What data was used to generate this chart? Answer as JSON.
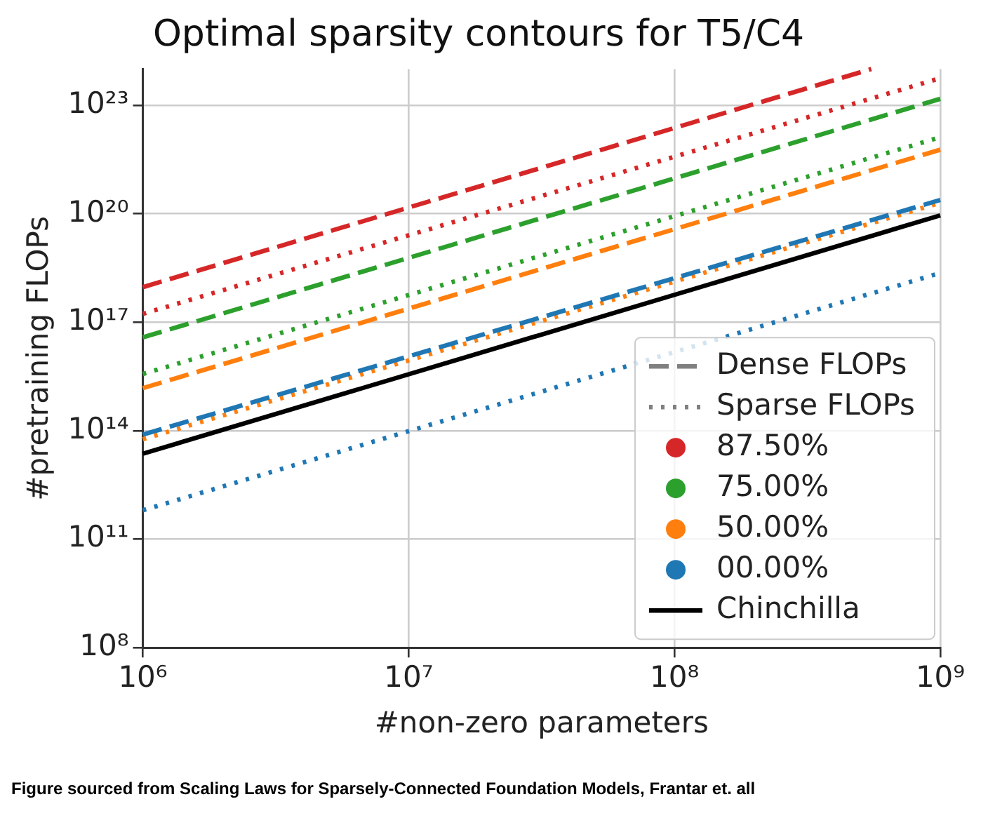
{
  "chart_data": {
    "type": "line",
    "title": "Optimal sparsity contours for T5/C4",
    "xlabel": "#non-zero parameters",
    "ylabel": "#pretraining FLOPs",
    "log": "xy",
    "grid": true,
    "legend": "bottom right",
    "xlim": [
      1000000,
      1000000000
    ],
    "ylim": [
      100000000,
      1e+24
    ],
    "xticks": [
      {
        "value": 1000000,
        "label": "10⁶"
      },
      {
        "value": 10000000,
        "label": "10⁷"
      },
      {
        "value": 100000000,
        "label": "10⁸"
      },
      {
        "value": 1000000000,
        "label": "10⁹"
      }
    ],
    "yticks": [
      {
        "value": 100000000,
        "label": "10⁸"
      },
      {
        "value": 100000000000,
        "label": "10¹¹"
      },
      {
        "value": 100000000000000,
        "label": "10¹⁴"
      },
      {
        "value": 1e+17,
        "label": "10¹⁷"
      },
      {
        "value": 1e+20,
        "label": "10²⁰"
      },
      {
        "value": 1e+23,
        "label": "10²³"
      }
    ],
    "annotations": [
      "Figure sourced from Scaling Laws for Sparsely-Connected Foundation Models, Frantar et. all"
    ],
    "series": [
      {
        "name": "Dense FLOPs",
        "color": "#808080",
        "line_style": "dashed"
      },
      {
        "name": "Sparse FLOPs",
        "color": "#808080",
        "line_style": "dotted"
      },
      {
        "name": "87.50%",
        "color": "#d62728",
        "line_style": "dashed",
        "x": [
          1000000,
          550000000
        ],
        "values": [
          9.3e+17,
          1e+24
        ]
      },
      {
        "name": "75.00%",
        "color": "#2ca02c",
        "line_style": "dashed",
        "x": [
          1000000,
          1000000000
        ],
        "values": [
          3.8e+16,
          1.5e+23
        ]
      },
      {
        "name": "50.00%",
        "color": "#ff7f0e",
        "line_style": "dashed",
        "x": [
          1000000,
          1000000000
        ],
        "values": [
          1500000000000000.0,
          5.9e+21
        ]
      },
      {
        "name": "00.00%",
        "color": "#1f77b4",
        "line_style": "dashed",
        "x": [
          1000000,
          1000000000
        ],
        "values": [
          78000000000000.0,
          2.4e+20
        ]
      },
      {
        "name": "Chinchilla",
        "color": "#000000",
        "line_style": "solid",
        "x": [
          1000000,
          1000000000
        ],
        "values": [
          23000000000000.0,
          9e+19
        ]
      },
      {
        "color": "#d62728",
        "line_style": "dotted",
        "x": [
          1000000,
          1000000000
        ],
        "values": [
          1.7e+17,
          5.6e+23
        ]
      },
      {
        "color": "#2ca02c",
        "line_style": "dotted",
        "x": [
          1000000,
          1000000000
        ],
        "values": [
          3700000000000000.0,
          1.3e+22
        ]
      },
      {
        "color": "#ff7f0e",
        "line_style": "dotted",
        "x": [
          1000000,
          1000000000
        ],
        "values": [
          58000000000000.0,
          2e+20
        ]
      },
      {
        "color": "#1f77b4",
        "line_style": "dotted",
        "x": [
          1000000,
          1000000000
        ],
        "values": [
          630000000000.0,
          2.3e+18
        ]
      }
    ]
  }
}
